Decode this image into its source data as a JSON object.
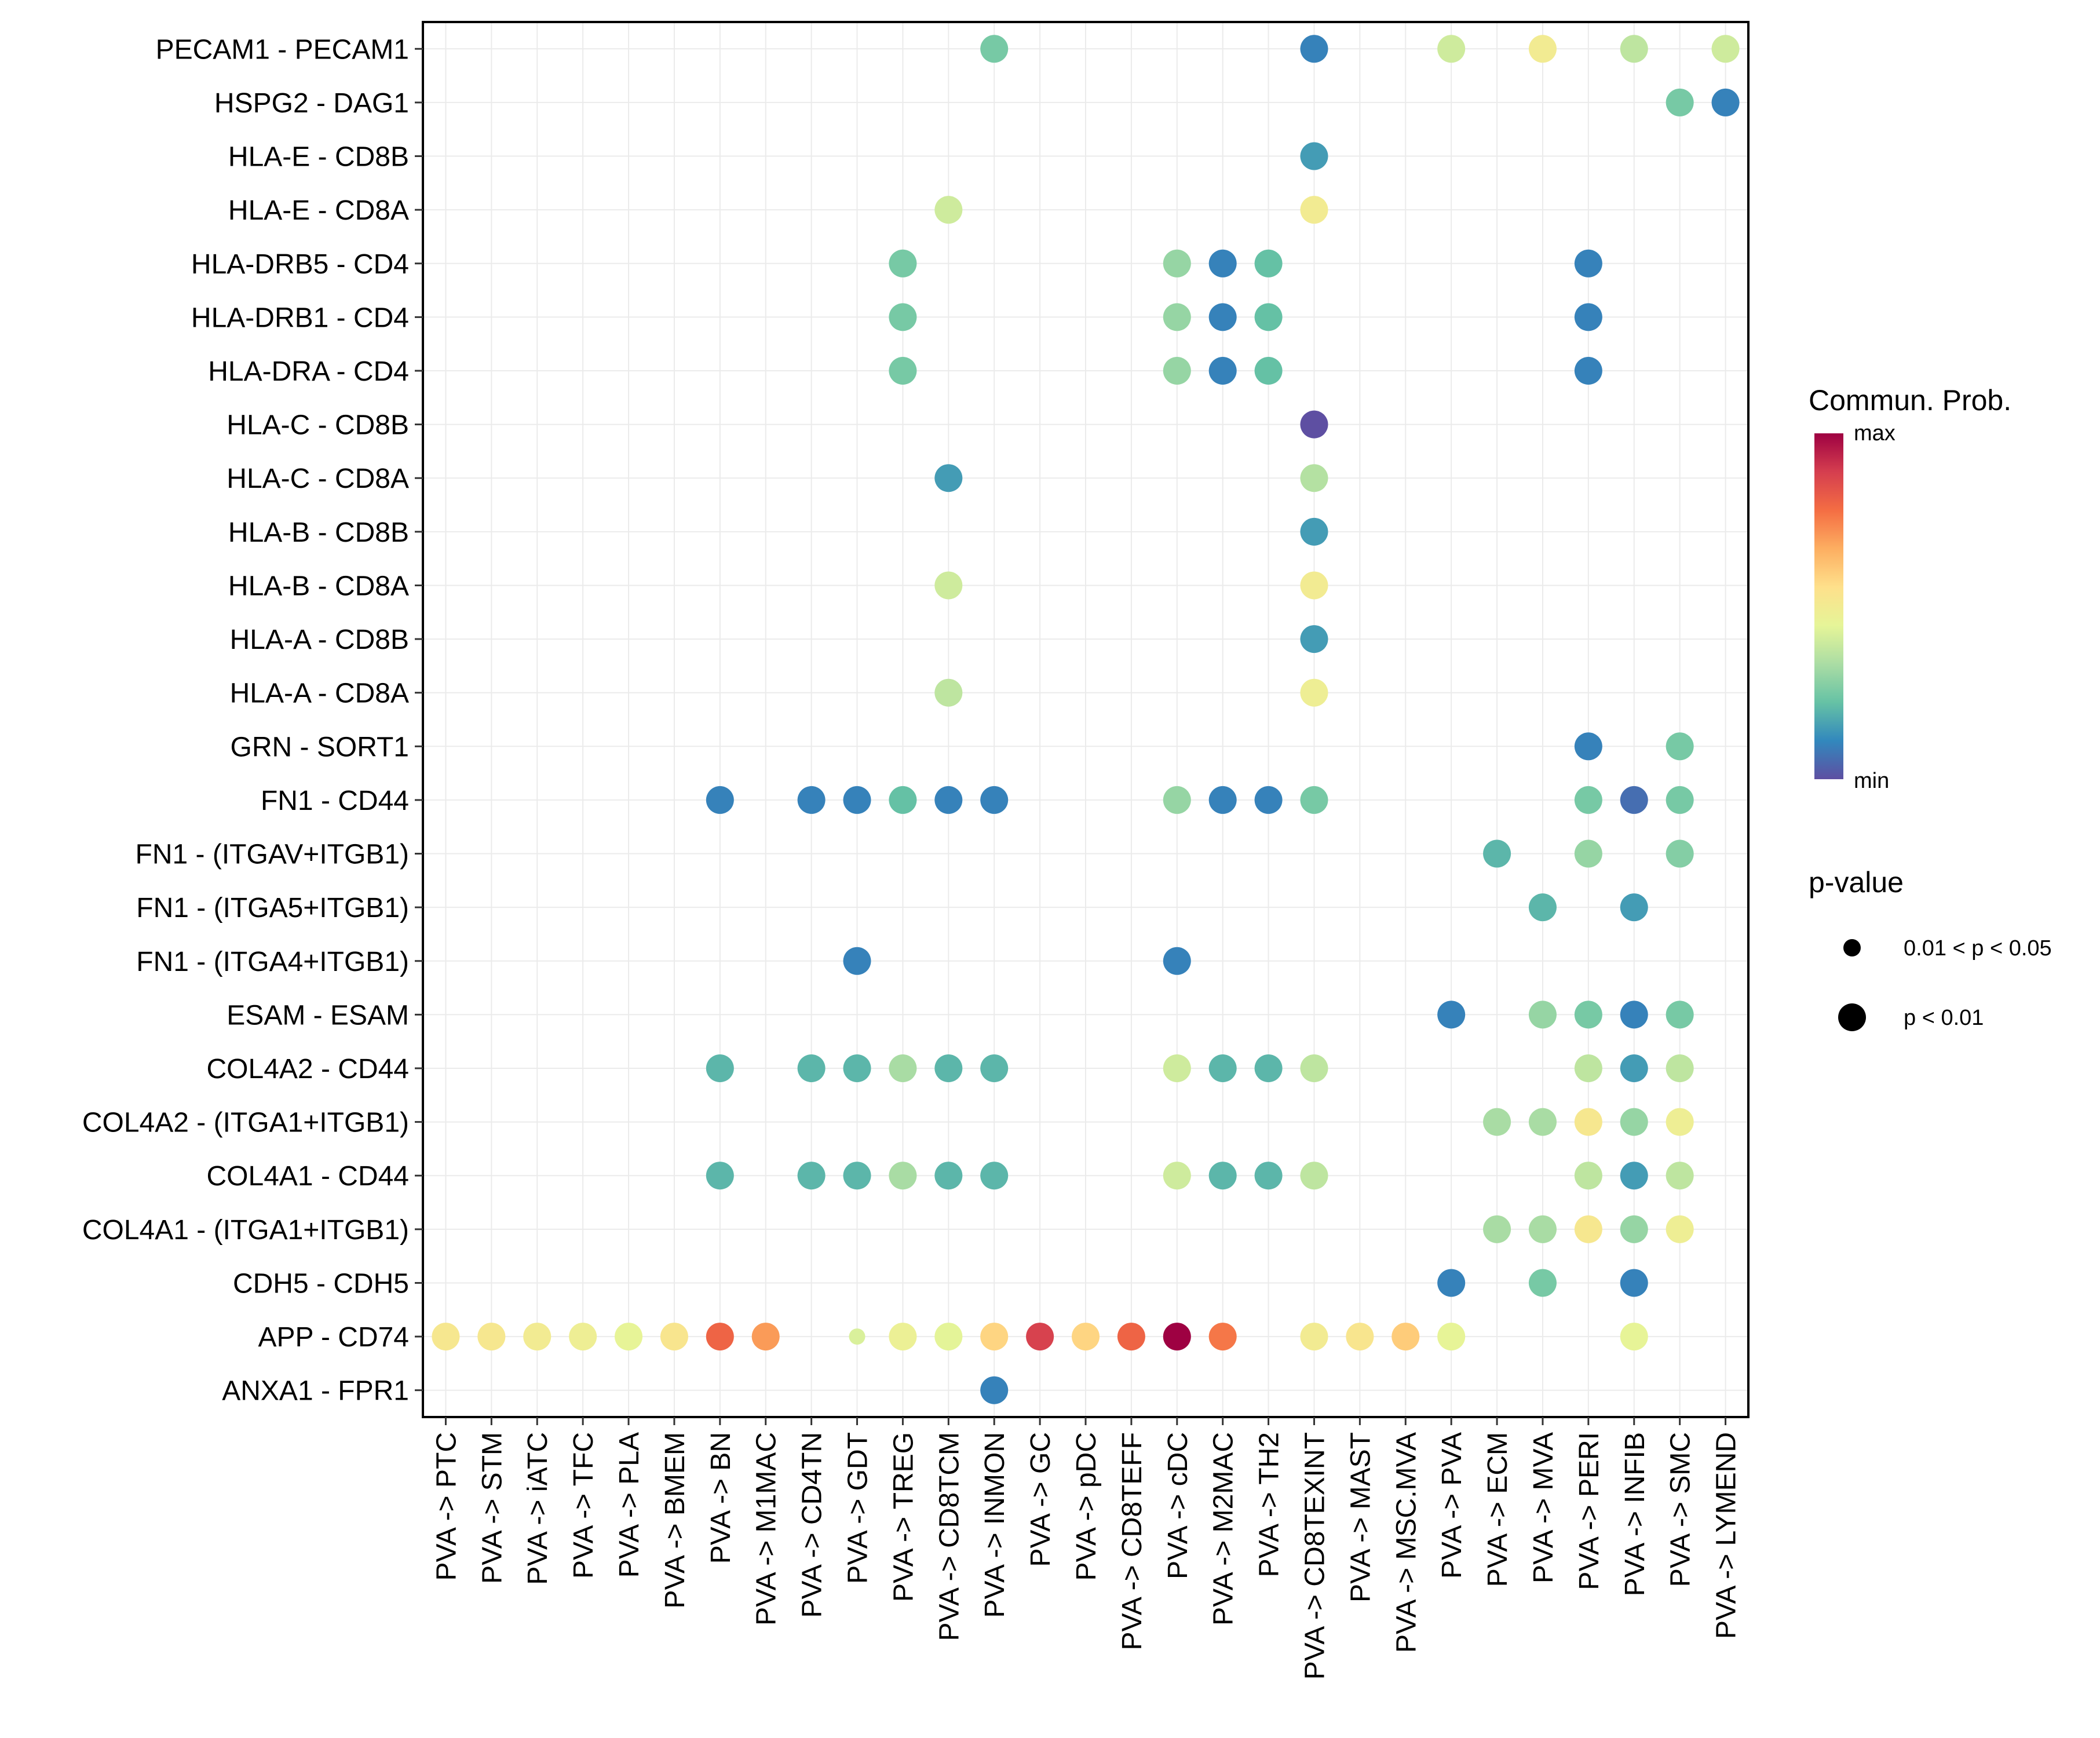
{
  "chart_data": {
    "type": "scatter",
    "subtype": "dot-heatmap",
    "title": "",
    "xlabel": "",
    "ylabel": "",
    "grid": true,
    "x_categories": [
      "PVA -> PTC",
      "PVA -> STM",
      "PVA -> iATC",
      "PVA -> TFC",
      "PVA -> PLA",
      "PVA -> BMEM",
      "PVA -> BN",
      "PVA -> M1MAC",
      "PVA -> CD4TN",
      "PVA -> GDT",
      "PVA -> TREG",
      "PVA -> CD8TCM",
      "PVA -> INMON",
      "PVA -> GC",
      "PVA -> pDC",
      "PVA -> CD8TEFF",
      "PVA -> cDC",
      "PVA -> M2MAC",
      "PVA -> TH2",
      "PVA -> CD8TEXINT",
      "PVA -> MAST",
      "PVA -> MSC.MVA",
      "PVA -> PVA",
      "PVA -> ECM",
      "PVA -> MVA",
      "PVA -> PERI",
      "PVA -> INFIB",
      "PVA -> SMC",
      "PVA -> LYMEND"
    ],
    "y_categories": [
      "PECAM1 - PECAM1",
      "HSPG2 - DAG1",
      "HLA-E - CD8B",
      "HLA-E - CD8A",
      "HLA-DRB5 - CD4",
      "HLA-DRB1 - CD4",
      "HLA-DRA - CD4",
      "HLA-C - CD8B",
      "HLA-C - CD8A",
      "HLA-B - CD8B",
      "HLA-B - CD8A",
      "HLA-A - CD8B",
      "HLA-A - CD8A",
      "GRN - SORT1",
      "FN1 - CD44",
      "FN1 - (ITGAV+ITGB1)",
      "FN1 - (ITGA5+ITGB1)",
      "FN1 - (ITGA4+ITGB1)",
      "ESAM - ESAM",
      "COL4A2 - CD44",
      "COL4A2 - (ITGA1+ITGB1)",
      "COL4A1 - CD44",
      "COL4A1 - (ITGA1+ITGB1)",
      "CDH5 - CDH5",
      "APP - CD74",
      "ANXA1 - FPR1"
    ],
    "value_note": "prob is relative position on the color scale (0 = min, 1 = max); pval: 'lt0.01' = large dot, '0.01-0.05' = small dot",
    "points": [
      {
        "y": "PECAM1 - PECAM1",
        "x": "PVA -> INMON",
        "prob": 0.25,
        "pval": "lt0.01"
      },
      {
        "y": "PECAM1 - PECAM1",
        "x": "PVA -> CD8TEXINT",
        "prob": 0.1,
        "pval": "lt0.01"
      },
      {
        "y": "PECAM1 - PECAM1",
        "x": "PVA -> PVA",
        "prob": 0.4,
        "pval": "lt0.01"
      },
      {
        "y": "PECAM1 - PECAM1",
        "x": "PVA -> MVA",
        "prob": 0.5,
        "pval": "lt0.01"
      },
      {
        "y": "PECAM1 - PECAM1",
        "x": "PVA -> INFIB",
        "prob": 0.37,
        "pval": "lt0.01"
      },
      {
        "y": "PECAM1 - PECAM1",
        "x": "PVA -> LYMEND",
        "prob": 0.4,
        "pval": "lt0.01"
      },
      {
        "y": "HSPG2 - DAG1",
        "x": "PVA -> SMC",
        "prob": 0.25,
        "pval": "lt0.01"
      },
      {
        "y": "HSPG2 - DAG1",
        "x": "PVA -> LYMEND",
        "prob": 0.1,
        "pval": "lt0.01"
      },
      {
        "y": "HLA-E - CD8B",
        "x": "PVA -> CD8TEXINT",
        "prob": 0.15,
        "pval": "lt0.01"
      },
      {
        "y": "HLA-E - CD8A",
        "x": "PVA -> CD8TCM",
        "prob": 0.4,
        "pval": "lt0.01"
      },
      {
        "y": "HLA-E - CD8A",
        "x": "PVA -> CD8TEXINT",
        "prob": 0.5,
        "pval": "lt0.01"
      },
      {
        "y": "HLA-DRB5 - CD4",
        "x": "PVA -> TREG",
        "prob": 0.25,
        "pval": "lt0.01"
      },
      {
        "y": "HLA-DRB5 - CD4",
        "x": "PVA -> cDC",
        "prob": 0.3,
        "pval": "lt0.01"
      },
      {
        "y": "HLA-DRB5 - CD4",
        "x": "PVA -> M2MAC",
        "prob": 0.1,
        "pval": "lt0.01"
      },
      {
        "y": "HLA-DRB5 - CD4",
        "x": "PVA -> TH2",
        "prob": 0.22,
        "pval": "lt0.01"
      },
      {
        "y": "HLA-DRB5 - CD4",
        "x": "PVA -> PERI",
        "prob": 0.1,
        "pval": "lt0.01"
      },
      {
        "y": "HLA-DRB1 - CD4",
        "x": "PVA -> TREG",
        "prob": 0.25,
        "pval": "lt0.01"
      },
      {
        "y": "HLA-DRB1 - CD4",
        "x": "PVA -> cDC",
        "prob": 0.3,
        "pval": "lt0.01"
      },
      {
        "y": "HLA-DRB1 - CD4",
        "x": "PVA -> M2MAC",
        "prob": 0.1,
        "pval": "lt0.01"
      },
      {
        "y": "HLA-DRB1 - CD4",
        "x": "PVA -> TH2",
        "prob": 0.22,
        "pval": "lt0.01"
      },
      {
        "y": "HLA-DRB1 - CD4",
        "x": "PVA -> PERI",
        "prob": 0.1,
        "pval": "lt0.01"
      },
      {
        "y": "HLA-DRA - CD4",
        "x": "PVA -> TREG",
        "prob": 0.25,
        "pval": "lt0.01"
      },
      {
        "y": "HLA-DRA - CD4",
        "x": "PVA -> cDC",
        "prob": 0.3,
        "pval": "lt0.01"
      },
      {
        "y": "HLA-DRA - CD4",
        "x": "PVA -> M2MAC",
        "prob": 0.1,
        "pval": "lt0.01"
      },
      {
        "y": "HLA-DRA - CD4",
        "x": "PVA -> TH2",
        "prob": 0.22,
        "pval": "lt0.01"
      },
      {
        "y": "HLA-DRA - CD4",
        "x": "PVA -> PERI",
        "prob": 0.1,
        "pval": "lt0.01"
      },
      {
        "y": "HLA-C - CD8B",
        "x": "PVA -> CD8TEXINT",
        "prob": 0.0,
        "pval": "lt0.01"
      },
      {
        "y": "HLA-C - CD8A",
        "x": "PVA -> CD8TCM",
        "prob": 0.15,
        "pval": "lt0.01"
      },
      {
        "y": "HLA-C - CD8A",
        "x": "PVA -> CD8TEXINT",
        "prob": 0.35,
        "pval": "lt0.01"
      },
      {
        "y": "HLA-B - CD8B",
        "x": "PVA -> CD8TEXINT",
        "prob": 0.15,
        "pval": "lt0.01"
      },
      {
        "y": "HLA-B - CD8A",
        "x": "PVA -> CD8TCM",
        "prob": 0.4,
        "pval": "lt0.01"
      },
      {
        "y": "HLA-B - CD8A",
        "x": "PVA -> CD8TEXINT",
        "prob": 0.5,
        "pval": "lt0.01"
      },
      {
        "y": "HLA-A - CD8B",
        "x": "PVA -> CD8TEXINT",
        "prob": 0.15,
        "pval": "lt0.01"
      },
      {
        "y": "HLA-A - CD8A",
        "x": "PVA -> CD8TCM",
        "prob": 0.37,
        "pval": "lt0.01"
      },
      {
        "y": "HLA-A - CD8A",
        "x": "PVA -> CD8TEXINT",
        "prob": 0.48,
        "pval": "lt0.01"
      },
      {
        "y": "GRN - SORT1",
        "x": "PVA -> PERI",
        "prob": 0.1,
        "pval": "lt0.01"
      },
      {
        "y": "GRN - SORT1",
        "x": "PVA -> SMC",
        "prob": 0.25,
        "pval": "lt0.01"
      },
      {
        "y": "FN1 - CD44",
        "x": "PVA -> BN",
        "prob": 0.1,
        "pval": "lt0.01"
      },
      {
        "y": "FN1 - CD44",
        "x": "PVA -> CD4TN",
        "prob": 0.1,
        "pval": "lt0.01"
      },
      {
        "y": "FN1 - CD44",
        "x": "PVA -> GDT",
        "prob": 0.1,
        "pval": "lt0.01"
      },
      {
        "y": "FN1 - CD44",
        "x": "PVA -> TREG",
        "prob": 0.22,
        "pval": "lt0.01"
      },
      {
        "y": "FN1 - CD44",
        "x": "PVA -> CD8TCM",
        "prob": 0.1,
        "pval": "lt0.01"
      },
      {
        "y": "FN1 - CD44",
        "x": "PVA -> INMON",
        "prob": 0.1,
        "pval": "lt0.01"
      },
      {
        "y": "FN1 - CD44",
        "x": "PVA -> cDC",
        "prob": 0.3,
        "pval": "lt0.01"
      },
      {
        "y": "FN1 - CD44",
        "x": "PVA -> M2MAC",
        "prob": 0.1,
        "pval": "lt0.01"
      },
      {
        "y": "FN1 - CD44",
        "x": "PVA -> TH2",
        "prob": 0.1,
        "pval": "lt0.01"
      },
      {
        "y": "FN1 - CD44",
        "x": "PVA -> CD8TEXINT",
        "prob": 0.25,
        "pval": "lt0.01"
      },
      {
        "y": "FN1 - CD44",
        "x": "PVA -> PERI",
        "prob": 0.25,
        "pval": "lt0.01"
      },
      {
        "y": "FN1 - CD44",
        "x": "PVA -> INFIB",
        "prob": 0.06,
        "pval": "lt0.01"
      },
      {
        "y": "FN1 - CD44",
        "x": "PVA -> SMC",
        "prob": 0.25,
        "pval": "lt0.01"
      },
      {
        "y": "FN1 - (ITGAV+ITGB1)",
        "x": "PVA -> ECM",
        "prob": 0.2,
        "pval": "lt0.01"
      },
      {
        "y": "FN1 - (ITGAV+ITGB1)",
        "x": "PVA -> PERI",
        "prob": 0.3,
        "pval": "lt0.01"
      },
      {
        "y": "FN1 - (ITGAV+ITGB1)",
        "x": "PVA -> SMC",
        "prob": 0.27,
        "pval": "lt0.01"
      },
      {
        "y": "FN1 - (ITGA5+ITGB1)",
        "x": "PVA -> MVA",
        "prob": 0.2,
        "pval": "lt0.01"
      },
      {
        "y": "FN1 - (ITGA5+ITGB1)",
        "x": "PVA -> INFIB",
        "prob": 0.15,
        "pval": "lt0.01"
      },
      {
        "y": "FN1 - (ITGA4+ITGB1)",
        "x": "PVA -> GDT",
        "prob": 0.1,
        "pval": "lt0.01"
      },
      {
        "y": "FN1 - (ITGA4+ITGB1)",
        "x": "PVA -> cDC",
        "prob": 0.1,
        "pval": "lt0.01"
      },
      {
        "y": "ESAM - ESAM",
        "x": "PVA -> PVA",
        "prob": 0.1,
        "pval": "lt0.01"
      },
      {
        "y": "ESAM - ESAM",
        "x": "PVA -> MVA",
        "prob": 0.3,
        "pval": "lt0.01"
      },
      {
        "y": "ESAM - ESAM",
        "x": "PVA -> PERI",
        "prob": 0.25,
        "pval": "lt0.01"
      },
      {
        "y": "ESAM - ESAM",
        "x": "PVA -> INFIB",
        "prob": 0.1,
        "pval": "lt0.01"
      },
      {
        "y": "ESAM - ESAM",
        "x": "PVA -> SMC",
        "prob": 0.25,
        "pval": "lt0.01"
      },
      {
        "y": "COL4A2 - CD44",
        "x": "PVA -> BN",
        "prob": 0.2,
        "pval": "lt0.01"
      },
      {
        "y": "COL4A2 - CD44",
        "x": "PVA -> CD4TN",
        "prob": 0.2,
        "pval": "lt0.01"
      },
      {
        "y": "COL4A2 - CD44",
        "x": "PVA -> GDT",
        "prob": 0.2,
        "pval": "lt0.01"
      },
      {
        "y": "COL4A2 - CD44",
        "x": "PVA -> TREG",
        "prob": 0.33,
        "pval": "lt0.01"
      },
      {
        "y": "COL4A2 - CD44",
        "x": "PVA -> CD8TCM",
        "prob": 0.2,
        "pval": "lt0.01"
      },
      {
        "y": "COL4A2 - CD44",
        "x": "PVA -> INMON",
        "prob": 0.2,
        "pval": "lt0.01"
      },
      {
        "y": "COL4A2 - CD44",
        "x": "PVA -> cDC",
        "prob": 0.4,
        "pval": "lt0.01"
      },
      {
        "y": "COL4A2 - CD44",
        "x": "PVA -> M2MAC",
        "prob": 0.2,
        "pval": "lt0.01"
      },
      {
        "y": "COL4A2 - CD44",
        "x": "PVA -> TH2",
        "prob": 0.2,
        "pval": "lt0.01"
      },
      {
        "y": "COL4A2 - CD44",
        "x": "PVA -> CD8TEXINT",
        "prob": 0.37,
        "pval": "lt0.01"
      },
      {
        "y": "COL4A2 - CD44",
        "x": "PVA -> PERI",
        "prob": 0.37,
        "pval": "lt0.01"
      },
      {
        "y": "COL4A2 - CD44",
        "x": "PVA -> INFIB",
        "prob": 0.15,
        "pval": "lt0.01"
      },
      {
        "y": "COL4A2 - CD44",
        "x": "PVA -> SMC",
        "prob": 0.37,
        "pval": "lt0.01"
      },
      {
        "y": "COL4A2 - (ITGA1+ITGB1)",
        "x": "PVA -> ECM",
        "prob": 0.33,
        "pval": "lt0.01"
      },
      {
        "y": "COL4A2 - (ITGA1+ITGB1)",
        "x": "PVA -> MVA",
        "prob": 0.33,
        "pval": "lt0.01"
      },
      {
        "y": "COL4A2 - (ITGA1+ITGB1)",
        "x": "PVA -> PERI",
        "prob": 0.52,
        "pval": "lt0.01"
      },
      {
        "y": "COL4A2 - (ITGA1+ITGB1)",
        "x": "PVA -> INFIB",
        "prob": 0.3,
        "pval": "lt0.01"
      },
      {
        "y": "COL4A2 - (ITGA1+ITGB1)",
        "x": "PVA -> SMC",
        "prob": 0.48,
        "pval": "lt0.01"
      },
      {
        "y": "COL4A1 - CD44",
        "x": "PVA -> BN",
        "prob": 0.2,
        "pval": "lt0.01"
      },
      {
        "y": "COL4A1 - CD44",
        "x": "PVA -> CD4TN",
        "prob": 0.2,
        "pval": "lt0.01"
      },
      {
        "y": "COL4A1 - CD44",
        "x": "PVA -> GDT",
        "prob": 0.2,
        "pval": "lt0.01"
      },
      {
        "y": "COL4A1 - CD44",
        "x": "PVA -> TREG",
        "prob": 0.33,
        "pval": "lt0.01"
      },
      {
        "y": "COL4A1 - CD44",
        "x": "PVA -> CD8TCM",
        "prob": 0.2,
        "pval": "lt0.01"
      },
      {
        "y": "COL4A1 - CD44",
        "x": "PVA -> INMON",
        "prob": 0.2,
        "pval": "lt0.01"
      },
      {
        "y": "COL4A1 - CD44",
        "x": "PVA -> cDC",
        "prob": 0.4,
        "pval": "lt0.01"
      },
      {
        "y": "COL4A1 - CD44",
        "x": "PVA -> M2MAC",
        "prob": 0.2,
        "pval": "lt0.01"
      },
      {
        "y": "COL4A1 - CD44",
        "x": "PVA -> TH2",
        "prob": 0.2,
        "pval": "lt0.01"
      },
      {
        "y": "COL4A1 - CD44",
        "x": "PVA -> CD8TEXINT",
        "prob": 0.37,
        "pval": "lt0.01"
      },
      {
        "y": "COL4A1 - CD44",
        "x": "PVA -> PERI",
        "prob": 0.37,
        "pval": "lt0.01"
      },
      {
        "y": "COL4A1 - CD44",
        "x": "PVA -> INFIB",
        "prob": 0.15,
        "pval": "lt0.01"
      },
      {
        "y": "COL4A1 - CD44",
        "x": "PVA -> SMC",
        "prob": 0.37,
        "pval": "lt0.01"
      },
      {
        "y": "COL4A1 - (ITGA1+ITGB1)",
        "x": "PVA -> ECM",
        "prob": 0.33,
        "pval": "lt0.01"
      },
      {
        "y": "COL4A1 - (ITGA1+ITGB1)",
        "x": "PVA -> MVA",
        "prob": 0.33,
        "pval": "lt0.01"
      },
      {
        "y": "COL4A1 - (ITGA1+ITGB1)",
        "x": "PVA -> PERI",
        "prob": 0.52,
        "pval": "lt0.01"
      },
      {
        "y": "COL4A1 - (ITGA1+ITGB1)",
        "x": "PVA -> INFIB",
        "prob": 0.3,
        "pval": "lt0.01"
      },
      {
        "y": "COL4A1 - (ITGA1+ITGB1)",
        "x": "PVA -> SMC",
        "prob": 0.48,
        "pval": "lt0.01"
      },
      {
        "y": "CDH5 - CDH5",
        "x": "PVA -> PVA",
        "prob": 0.1,
        "pval": "lt0.01"
      },
      {
        "y": "CDH5 - CDH5",
        "x": "PVA -> MVA",
        "prob": 0.25,
        "pval": "lt0.01"
      },
      {
        "y": "CDH5 - CDH5",
        "x": "PVA -> INFIB",
        "prob": 0.1,
        "pval": "lt0.01"
      },
      {
        "y": "APP - CD74",
        "x": "PVA -> PTC",
        "prob": 0.52,
        "pval": "lt0.01"
      },
      {
        "y": "APP - CD74",
        "x": "PVA -> STM",
        "prob": 0.52,
        "pval": "lt0.01"
      },
      {
        "y": "APP - CD74",
        "x": "PVA -> iATC",
        "prob": 0.5,
        "pval": "lt0.01"
      },
      {
        "y": "APP - CD74",
        "x": "PVA -> TFC",
        "prob": 0.48,
        "pval": "lt0.01"
      },
      {
        "y": "APP - CD74",
        "x": "PVA -> PLA",
        "prob": 0.45,
        "pval": "lt0.01"
      },
      {
        "y": "APP - CD74",
        "x": "PVA -> BMEM",
        "prob": 0.53,
        "pval": "lt0.01"
      },
      {
        "y": "APP - CD74",
        "x": "PVA -> BN",
        "prob": 0.8,
        "pval": "lt0.01"
      },
      {
        "y": "APP - CD74",
        "x": "PVA -> M1MAC",
        "prob": 0.7,
        "pval": "lt0.01"
      },
      {
        "y": "APP - CD74",
        "x": "PVA -> GDT",
        "prob": 0.42,
        "pval": "0.01-0.05"
      },
      {
        "y": "APP - CD74",
        "x": "PVA -> TREG",
        "prob": 0.47,
        "pval": "lt0.01"
      },
      {
        "y": "APP - CD74",
        "x": "PVA -> CD8TCM",
        "prob": 0.44,
        "pval": "lt0.01"
      },
      {
        "y": "APP - CD74",
        "x": "PVA -> INMON",
        "prob": 0.58,
        "pval": "lt0.01"
      },
      {
        "y": "APP - CD74",
        "x": "PVA -> GC",
        "prob": 0.88,
        "pval": "lt0.01"
      },
      {
        "y": "APP - CD74",
        "x": "PVA -> pDC",
        "prob": 0.58,
        "pval": "lt0.01"
      },
      {
        "y": "APP - CD74",
        "x": "PVA -> CD8TEFF",
        "prob": 0.8,
        "pval": "lt0.01"
      },
      {
        "y": "APP - CD74",
        "x": "PVA -> cDC",
        "prob": 1.0,
        "pval": "lt0.01"
      },
      {
        "y": "APP - CD74",
        "x": "PVA -> M2MAC",
        "prob": 0.76,
        "pval": "lt0.01"
      },
      {
        "y": "APP - CD74",
        "x": "PVA -> CD8TEXINT",
        "prob": 0.5,
        "pval": "lt0.01"
      },
      {
        "y": "APP - CD74",
        "x": "PVA -> MAST",
        "prob": 0.53,
        "pval": "lt0.01"
      },
      {
        "y": "APP - CD74",
        "x": "PVA -> MSC.MVA",
        "prob": 0.6,
        "pval": "lt0.01"
      },
      {
        "y": "APP - CD74",
        "x": "PVA -> PVA",
        "prob": 0.45,
        "pval": "lt0.01"
      },
      {
        "y": "APP - CD74",
        "x": "PVA -> INFIB",
        "prob": 0.45,
        "pval": "lt0.01"
      },
      {
        "y": "ANXA1 - FPR1",
        "x": "PVA -> INMON",
        "prob": 0.1,
        "pval": "lt0.01"
      }
    ],
    "color_scale": {
      "title": "Commun. Prob.",
      "max_label": "max",
      "min_label": "min",
      "colors": [
        "#5e4fa2",
        "#3288bd",
        "#66c2a5",
        "#abdda4",
        "#e6f598",
        "#fee08b",
        "#fdae61",
        "#f46d43",
        "#d53e4f",
        "#9e0142"
      ]
    },
    "size_legend": {
      "title": "p-value",
      "entries": [
        {
          "label": "0.01 < p < 0.05",
          "key": "0.01-0.05"
        },
        {
          "label": "p < 0.01",
          "key": "lt0.01"
        }
      ]
    },
    "legend_position": "right"
  }
}
